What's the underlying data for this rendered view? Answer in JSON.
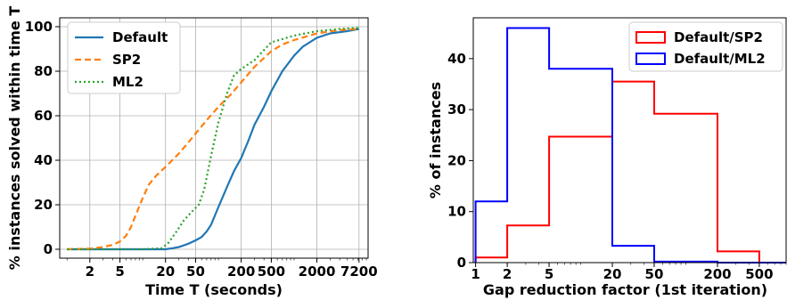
{
  "chart_data": [
    {
      "type": "line",
      "xlabel": "Time T (seconds)",
      "ylabel": "% instances solved within time T",
      "xscale": "log",
      "xlim": [
        0.8,
        9500
      ],
      "ylim": [
        -4,
        104
      ],
      "xticks": [
        2,
        5,
        20,
        50,
        200,
        500,
        2000,
        7200
      ],
      "xtick_labels": [
        "2",
        "5",
        "20",
        "50",
        "200",
        "500",
        "2000",
        "7200"
      ],
      "yticks": [
        0,
        20,
        40,
        60,
        80,
        100
      ],
      "grid": true,
      "legend_position": "top-left",
      "series": [
        {
          "name": "Default",
          "color": "#1f77b4",
          "dash": "solid",
          "points": [
            [
              1,
              0
            ],
            [
              5,
              0
            ],
            [
              10,
              0
            ],
            [
              20,
              0
            ],
            [
              25,
              0.5
            ],
            [
              30,
              1
            ],
            [
              40,
              2.5
            ],
            [
              50,
              4
            ],
            [
              60,
              5.5
            ],
            [
              70,
              8
            ],
            [
              80,
              11
            ],
            [
              100,
              19
            ],
            [
              130,
              28
            ],
            [
              160,
              35
            ],
            [
              200,
              41
            ],
            [
              250,
              49
            ],
            [
              300,
              56
            ],
            [
              400,
              64
            ],
            [
              500,
              71
            ],
            [
              700,
              80
            ],
            [
              1000,
              87
            ],
            [
              1300,
              91
            ],
            [
              2000,
              95
            ],
            [
              3000,
              97
            ],
            [
              5000,
              98
            ],
            [
              7200,
              99
            ]
          ]
        },
        {
          "name": "SP2",
          "color": "#ff7f0e",
          "dash": "dashed",
          "points": [
            [
              1,
              0
            ],
            [
              2,
              0.3
            ],
            [
              3,
              1
            ],
            [
              4,
              2
            ],
            [
              5,
              3.5
            ],
            [
              6,
              6
            ],
            [
              7,
              10
            ],
            [
              8,
              15
            ],
            [
              10,
              23
            ],
            [
              12,
              29
            ],
            [
              15,
              33
            ],
            [
              20,
              37
            ],
            [
              30,
              43
            ],
            [
              40,
              48
            ],
            [
              50,
              52
            ],
            [
              70,
              58
            ],
            [
              100,
              64
            ],
            [
              150,
              70
            ],
            [
              200,
              75
            ],
            [
              300,
              82
            ],
            [
              500,
              89
            ],
            [
              700,
              92
            ],
            [
              1000,
              94
            ],
            [
              2000,
              97
            ],
            [
              4000,
              98.5
            ],
            [
              7200,
              99
            ]
          ]
        },
        {
          "name": "ML2",
          "color": "#2ca02c",
          "dash": "dotted",
          "points": [
            [
              1,
              0
            ],
            [
              10,
              0
            ],
            [
              18,
              0.5
            ],
            [
              22,
              3
            ],
            [
              28,
              8
            ],
            [
              35,
              13
            ],
            [
              45,
              17
            ],
            [
              55,
              20
            ],
            [
              65,
              27
            ],
            [
              80,
              42
            ],
            [
              100,
              57
            ],
            [
              130,
              70
            ],
            [
              160,
              78
            ],
            [
              200,
              81
            ],
            [
              300,
              85
            ],
            [
              500,
              93
            ],
            [
              1000,
              96
            ],
            [
              2000,
              98
            ],
            [
              4000,
              99
            ],
            [
              7200,
              99.5
            ]
          ]
        }
      ]
    },
    {
      "type": "histogram",
      "xlabel": "Gap reduction factor (1st iteration)",
      "ylabel": "% of instances",
      "xscale": "log",
      "xlim": [
        0.95,
        900
      ],
      "ylim": [
        0,
        48
      ],
      "xticks": [
        1,
        2,
        5,
        20,
        50,
        200,
        500
      ],
      "xtick_labels": [
        "1",
        "2",
        "5",
        "20",
        "50",
        "200",
        "500"
      ],
      "yticks": [
        0,
        10,
        20,
        30,
        40
      ],
      "legend_position": "top-right",
      "bin_edges": [
        1,
        2,
        5,
        20,
        50,
        200,
        500,
        900
      ],
      "series": [
        {
          "name": "Default/SP2",
          "color": "#ff0000",
          "values": [
            1,
            7.3,
            24.7,
            35.5,
            29.2,
            2.2,
            0
          ]
        },
        {
          "name": "Default/ML2",
          "color": "#0000ff",
          "values": [
            12,
            46,
            38,
            3.3,
            0.2,
            0,
            0
          ]
        }
      ]
    }
  ]
}
